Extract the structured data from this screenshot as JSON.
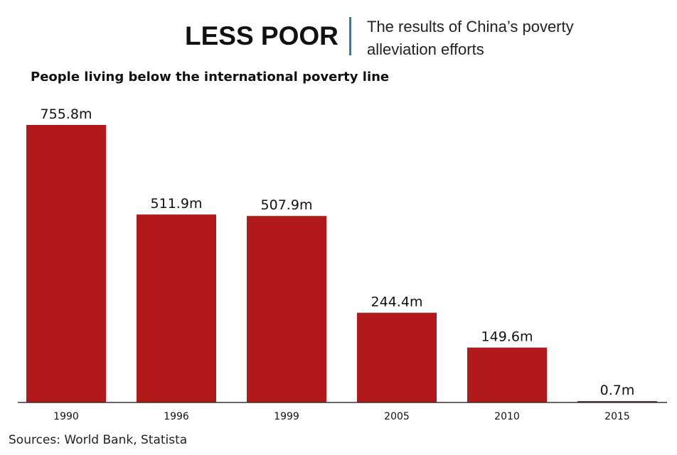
{
  "header": {
    "headline": "LESS POOR",
    "subtitle": "The results of China’s poverty alleviation efforts"
  },
  "chart_data": {
    "type": "bar",
    "title": "People living below the international poverty line",
    "categories": [
      "1990",
      "1996",
      "1999",
      "2005",
      "2010",
      "2015"
    ],
    "values": [
      755.8,
      511.9,
      507.9,
      244.4,
      149.6,
      0.7
    ],
    "value_labels": [
      "755.8m",
      "511.9m",
      "507.9m",
      "244.4m",
      "149.6m",
      "0.7m"
    ],
    "unit": "million people",
    "xlabel": "",
    "ylabel": "",
    "ylim": [
      0,
      755.8
    ],
    "grid": false,
    "bar_color": "#b2191b"
  },
  "footer": {
    "source": "Sources: World Bank, Statista"
  }
}
